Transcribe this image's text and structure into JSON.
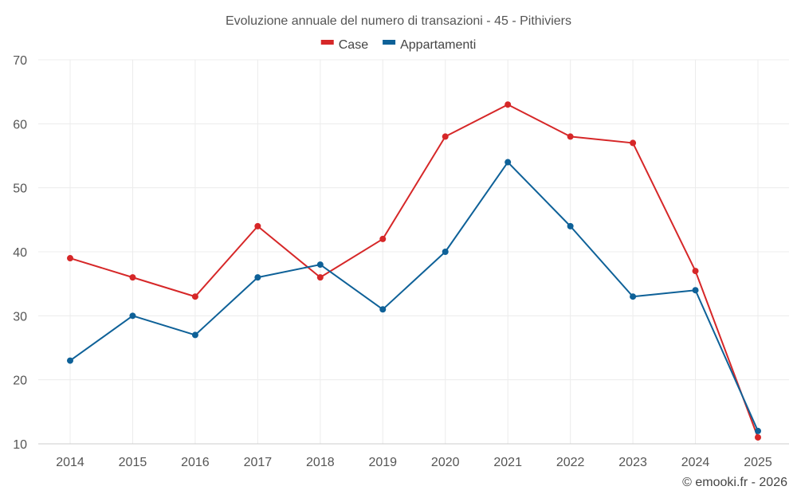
{
  "chart_data": {
    "type": "line",
    "title": "Evoluzione annuale del numero di transazioni - 45 - Pithiviers",
    "categories": [
      "2014",
      "2015",
      "2016",
      "2017",
      "2018",
      "2019",
      "2020",
      "2021",
      "2022",
      "2023",
      "2024",
      "2025"
    ],
    "series": [
      {
        "name": "Case",
        "color": "#d62728",
        "values": [
          39,
          36,
          33,
          44,
          36,
          42,
          58,
          63,
          58,
          57,
          37,
          11
        ]
      },
      {
        "name": "Appartamenti",
        "color": "#0e6198",
        "values": [
          23,
          30,
          27,
          36,
          38,
          31,
          40,
          54,
          44,
          33,
          34,
          12
        ]
      }
    ],
    "ylim": [
      10,
      70
    ],
    "yticks": [
      10,
      20,
      30,
      40,
      50,
      60,
      70
    ],
    "xlabel": "",
    "ylabel": "",
    "grid": true,
    "legend_position": "top-center"
  },
  "credit": "© emooki.fr - 2026"
}
